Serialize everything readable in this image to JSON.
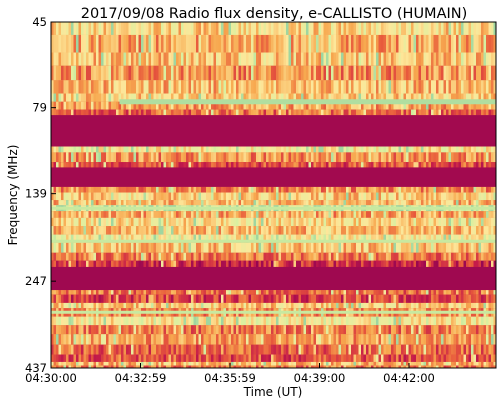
{
  "chart_data": {
    "type": "heatmap",
    "title": "2017/09/08  Radio flux density, e-CALLISTO (HUMAIN)",
    "xlabel": "Time (UT)",
    "ylabel": "Frequency (MHz)",
    "x_ticks": [
      "04:30:00",
      "04:32:59",
      "04:35:59",
      "04:39:00",
      "04:42:00"
    ],
    "y_ticks": [
      "45",
      "79",
      "139",
      "247",
      "437"
    ],
    "colormap": [
      "#8e0152",
      "#c51b4a",
      "#e85a3c",
      "#f7a84f",
      "#fde79a",
      "#d8f0a0",
      "#9fd6a0"
    ],
    "frequency_bands_mhz": [
      {
        "from": 45,
        "to": 49,
        "level": 0.62
      },
      {
        "from": 49,
        "to": 55,
        "level": 0.5
      },
      {
        "from": 55,
        "to": 60,
        "level": 0.58
      },
      {
        "from": 60,
        "to": 66,
        "level": 0.45
      },
      {
        "from": 66,
        "to": 72,
        "level": 0.55
      },
      {
        "from": 72,
        "to": 76,
        "level": 0.6
      },
      {
        "from": 76,
        "to": 80,
        "level": 0.5
      },
      {
        "from": 80,
        "to": 83,
        "level": 0.35
      },
      {
        "from": 83,
        "to": 102,
        "level": 0.06
      },
      {
        "from": 102,
        "to": 106,
        "level": 0.7
      },
      {
        "from": 106,
        "to": 113,
        "level": 0.45
      },
      {
        "from": 113,
        "to": 117,
        "level": 0.3
      },
      {
        "from": 117,
        "to": 133,
        "level": 0.06
      },
      {
        "from": 133,
        "to": 138,
        "level": 0.45
      },
      {
        "from": 138,
        "to": 145,
        "level": 0.6
      },
      {
        "from": 145,
        "to": 150,
        "level": 0.55
      },
      {
        "from": 150,
        "to": 156,
        "level": 0.85
      },
      {
        "from": 156,
        "to": 163,
        "level": 0.5
      },
      {
        "from": 163,
        "to": 172,
        "level": 0.65
      },
      {
        "from": 172,
        "to": 182,
        "level": 0.55
      },
      {
        "from": 182,
        "to": 192,
        "level": 0.72
      },
      {
        "from": 192,
        "to": 205,
        "level": 0.58
      },
      {
        "from": 205,
        "to": 216,
        "level": 0.4
      },
      {
        "from": 216,
        "to": 225,
        "level": 0.2
      },
      {
        "from": 225,
        "to": 262,
        "level": 0.05
      },
      {
        "from": 262,
        "to": 270,
        "level": 0.38
      },
      {
        "from": 270,
        "to": 285,
        "level": 0.25
      },
      {
        "from": 285,
        "to": 295,
        "level": 0.6
      },
      {
        "from": 295,
        "to": 312,
        "level": 0.45
      },
      {
        "from": 312,
        "to": 330,
        "level": 0.7
      },
      {
        "from": 330,
        "to": 350,
        "level": 0.4
      },
      {
        "from": 350,
        "to": 375,
        "level": 0.48
      },
      {
        "from": 375,
        "to": 400,
        "level": 0.35
      },
      {
        "from": 400,
        "to": 420,
        "level": 0.3
      },
      {
        "from": 420,
        "to": 430,
        "level": 0.55
      },
      {
        "from": 430,
        "to": 437,
        "level": 0.4
      }
    ],
    "features": {
      "bright_line": {
        "freq_mhz": 76,
        "start_time": "04:32:20",
        "level": 0.95
      },
      "bright_bands_mhz": [
        153,
        190,
        303
      ]
    }
  }
}
